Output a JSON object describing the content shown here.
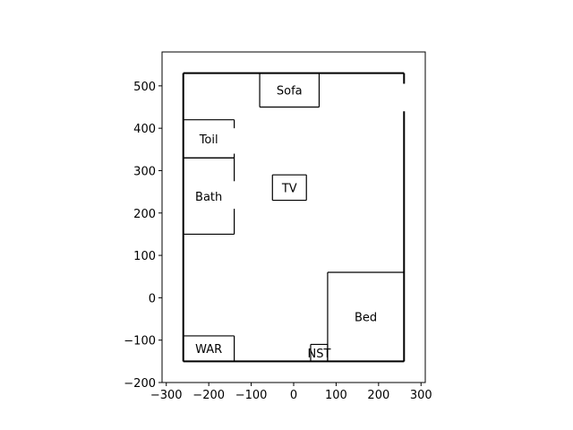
{
  "chart_data": {
    "type": "floor-plan",
    "title": "",
    "xlabel": "",
    "ylabel": "",
    "xlim": [
      -310,
      310
    ],
    "ylim": [
      -200,
      580
    ],
    "xticks": [
      -300,
      -200,
      -100,
      0,
      100,
      200,
      300
    ],
    "xtick_labels": [
      "−300",
      "−200",
      "−100",
      "0",
      "100",
      "200",
      "300"
    ],
    "yticks": [
      -200,
      -100,
      0,
      100,
      200,
      300,
      400,
      500
    ],
    "ytick_labels": [
      "−200",
      "−100",
      "0",
      "100",
      "200",
      "300",
      "400",
      "500"
    ],
    "grid": false,
    "outer_wall": {
      "x0": -260,
      "y0": -150,
      "x1": 260,
      "y1": 530
    },
    "door_gaps": [
      {
        "side": "right",
        "x": 260,
        "y0": 440,
        "y1": 505
      }
    ],
    "rooms": [
      {
        "id": "sofa",
        "label": "Sofa",
        "x0": -80,
        "y0": 450,
        "x1": 60,
        "y1": 530
      },
      {
        "id": "toil",
        "label": "Toil",
        "x0": -260,
        "y0": 330,
        "x1": -140,
        "y1": 420,
        "gap_right": [
          340,
          400
        ]
      },
      {
        "id": "bath",
        "label": "Bath",
        "x0": -260,
        "y0": 150,
        "x1": -140,
        "y1": 330,
        "gap_right": [
          210,
          275
        ]
      },
      {
        "id": "tv",
        "label": "TV",
        "x0": -50,
        "y0": 230,
        "x1": 30,
        "y1": 290
      },
      {
        "id": "bed",
        "label": "Bed",
        "x0": 80,
        "y0": -150,
        "x1": 260,
        "y1": 60
      },
      {
        "id": "war",
        "label": "WAR",
        "x0": -260,
        "y0": -150,
        "x1": -140,
        "y1": -90
      },
      {
        "id": "nst",
        "label": "NST",
        "x0": 40,
        "y0": -150,
        "x1": 80,
        "y1": -110
      }
    ]
  }
}
